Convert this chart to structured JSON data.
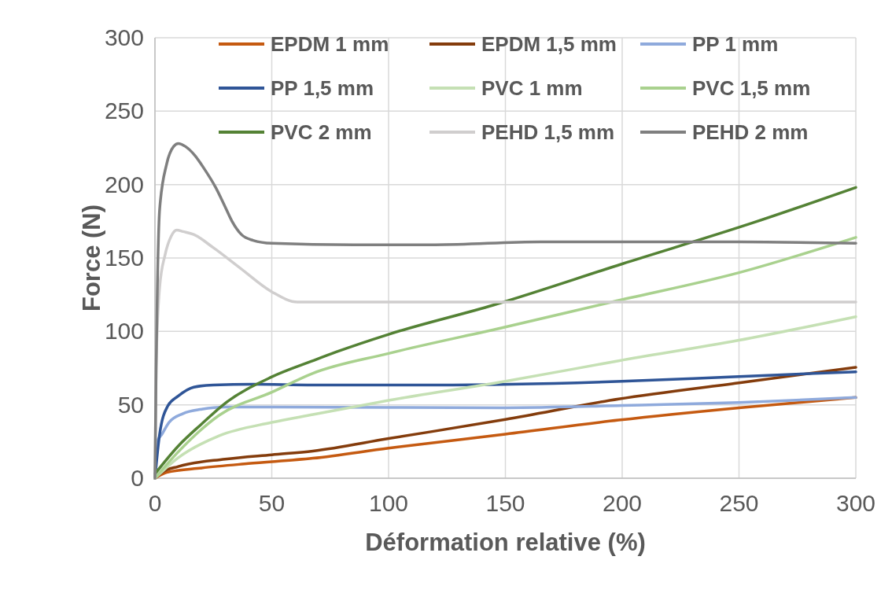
{
  "chart_data": {
    "type": "line",
    "xlabel": "Déformation relative (%)",
    "ylabel": "Force (N)",
    "xlim": [
      0,
      300
    ],
    "ylim": [
      0,
      300
    ],
    "xticks": [
      0,
      50,
      100,
      150,
      200,
      250,
      300
    ],
    "yticks": [
      0,
      50,
      100,
      150,
      200,
      250,
      300
    ],
    "grid": true,
    "legend": "top",
    "marker": "none",
    "line_style": "solid",
    "series": [
      {
        "name": "EPDM 1 mm",
        "color": "#c55a11",
        "x": [
          0,
          5,
          20,
          40,
          67.6,
          100,
          150,
          198.5,
          250,
          300
        ],
        "values": [
          0,
          4,
          7,
          10,
          13.6,
          20.5,
          30,
          39.6,
          48,
          55
        ]
      },
      {
        "name": "EPDM 1,5 mm",
        "color": "#843c0c",
        "x": [
          0,
          3,
          10,
          30,
          50,
          67.6,
          100,
          150,
          198.5,
          250,
          300
        ],
        "values": [
          0,
          4,
          8,
          13,
          16,
          18.5,
          27,
          40,
          54,
          65,
          75.5
        ]
      },
      {
        "name": "PP 1 mm",
        "color": "#8faadc",
        "x": [
          0,
          1,
          3,
          6,
          12,
          20,
          30,
          50,
          150,
          200,
          250,
          300
        ],
        "values": [
          0,
          25,
          30,
          38,
          44,
          47,
          48.5,
          48.5,
          48,
          49.5,
          51.5,
          55
        ]
      },
      {
        "name": "PP 1,5 mm",
        "color": "#2f5597",
        "x": [
          0,
          2,
          5.4,
          10,
          16.6,
          25,
          42,
          67.6,
          120,
          200,
          246,
          300
        ],
        "values": [
          0,
          30,
          49,
          56,
          62,
          63.5,
          64,
          63.5,
          63.5,
          66,
          69,
          72.5
        ]
      },
      {
        "name": "PVC 1 mm",
        "color": "#c5e0b4",
        "x": [
          0,
          10,
          27.6,
          50,
          67.6,
          100,
          150,
          198.5,
          250,
          300
        ],
        "values": [
          0,
          14,
          29,
          38,
          43.4,
          53,
          66,
          80,
          94,
          110
        ]
      },
      {
        "name": "PVC 1,5 mm",
        "color": "#a9d18e",
        "x": [
          0,
          10,
          27.6,
          50,
          67.6,
          100,
          150,
          195.5,
          250,
          300
        ],
        "values": [
          0,
          18,
          43,
          58.6,
          71.5,
          85,
          103,
          120,
          140,
          164
        ]
      },
      {
        "name": "PVC 2 mm",
        "color": "#548235",
        "x": [
          0,
          10,
          20,
          30,
          50,
          67.6,
          77.6,
          100,
          145,
          200,
          256,
          300
        ],
        "values": [
          3,
          22,
          37,
          51,
          69,
          80,
          86,
          98,
          118,
          146,
          174,
          198
        ]
      },
      {
        "name": "PEHD 1,5 mm",
        "color": "#d0cece",
        "x": [
          0,
          0.5,
          2,
          4.3,
          7,
          9.3,
          12,
          16.6,
          25,
          36.6,
          50,
          61,
          80,
          150,
          200,
          300
        ],
        "values": [
          0,
          76,
          130,
          152,
          165,
          169,
          168,
          166,
          157,
          143,
          127,
          120,
          120,
          120,
          120,
          120
        ]
      },
      {
        "name": "PEHD 2 mm",
        "color": "#7f7f7f",
        "x": [
          0,
          0.5,
          1,
          2,
          5,
          8,
          10,
          13,
          17,
          21,
          26,
          30,
          33,
          37,
          42,
          50,
          85,
          120,
          165,
          190,
          250,
          300
        ],
        "values": [
          0,
          75,
          127,
          183,
          214,
          226,
          228,
          226,
          220,
          211,
          198,
          185,
          175,
          166,
          162,
          160,
          159,
          159,
          161,
          161,
          161,
          160
        ]
      }
    ]
  }
}
